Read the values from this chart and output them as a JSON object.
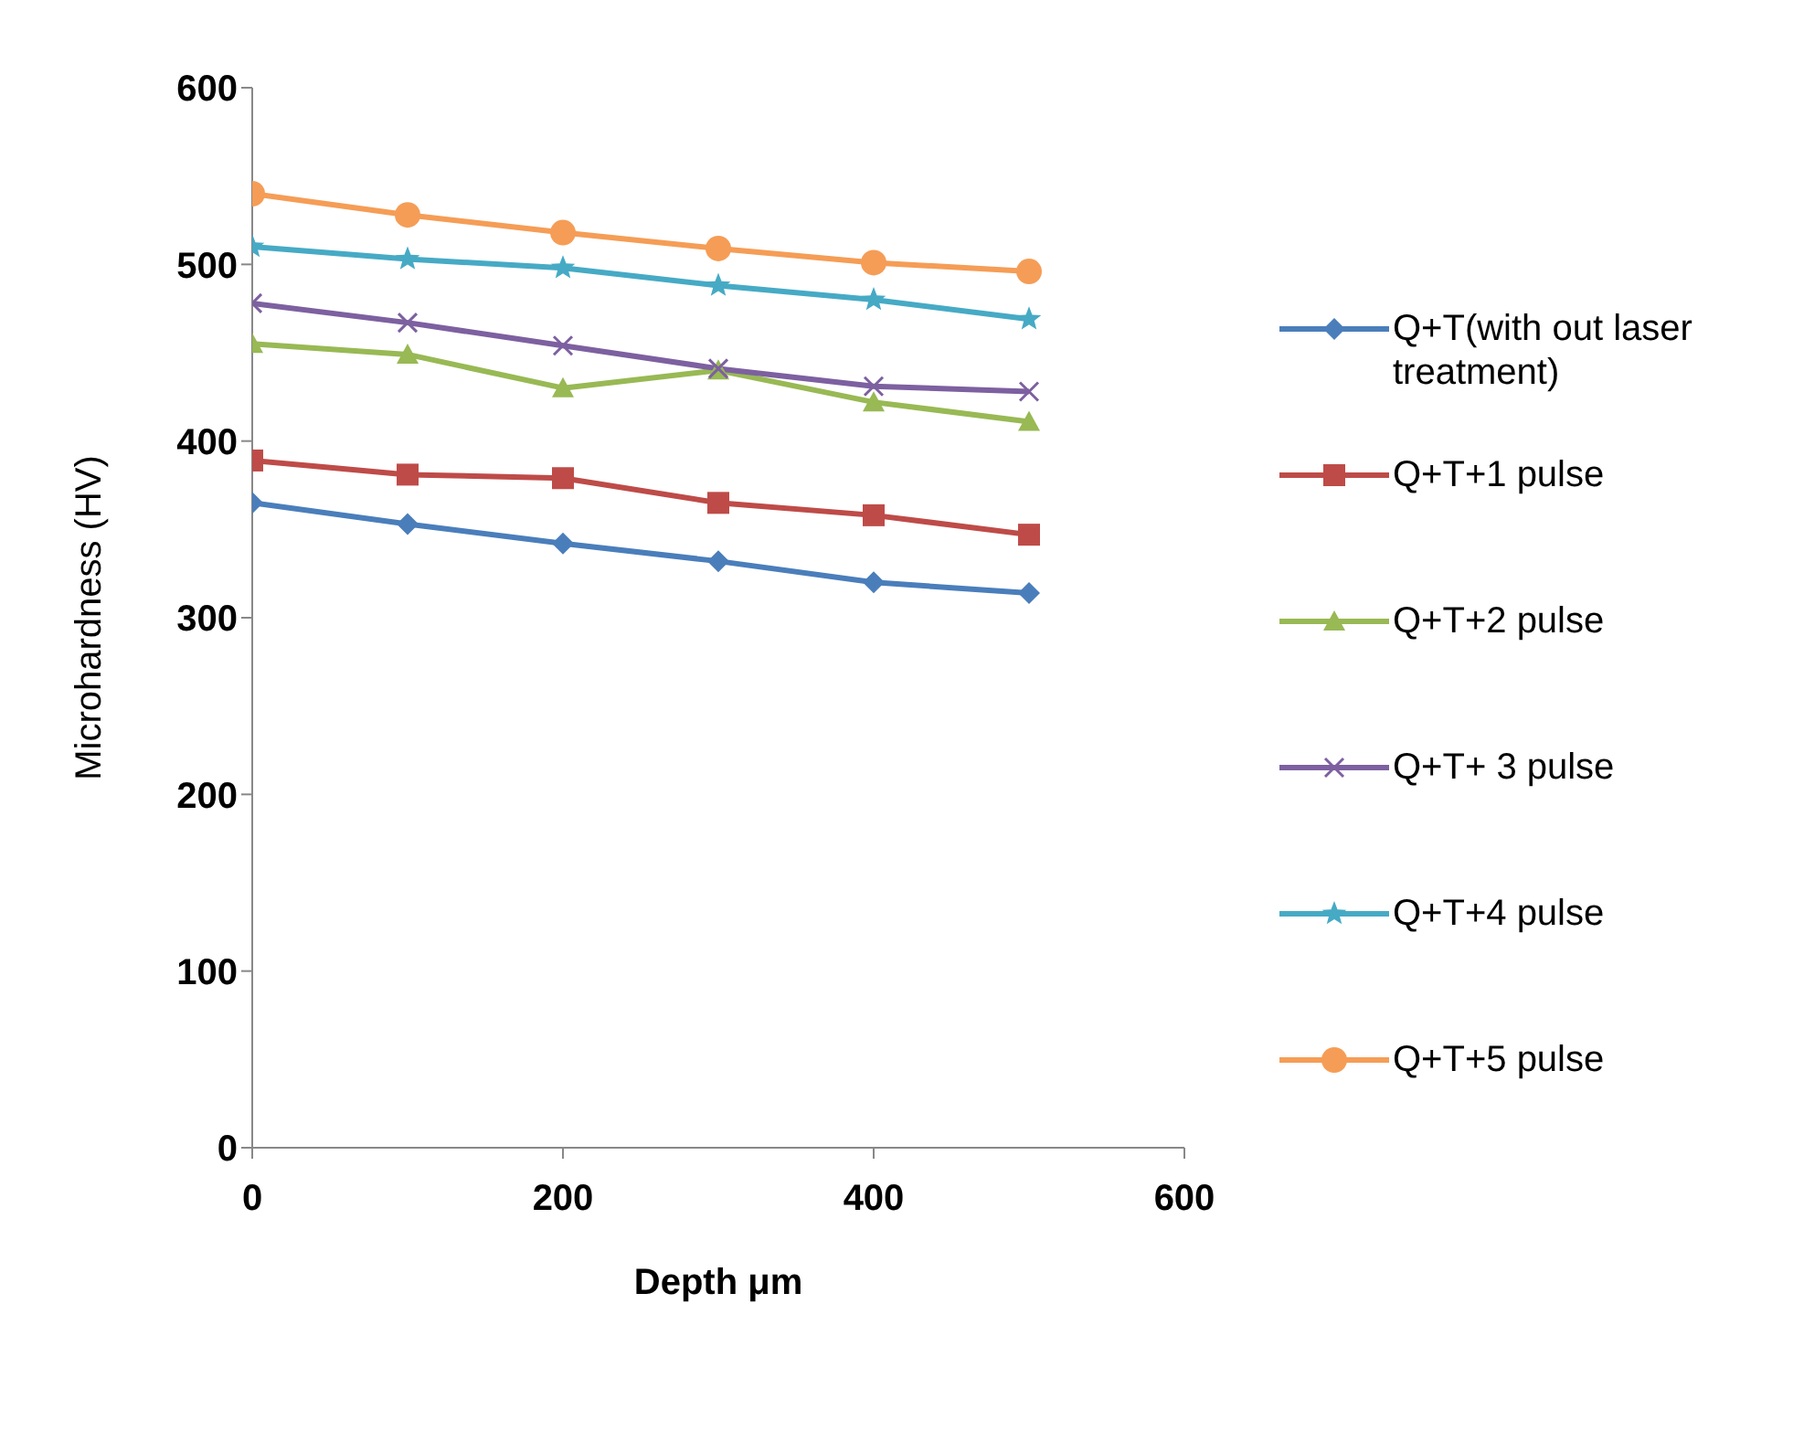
{
  "chart_data": {
    "type": "line",
    "xlabel": "Depth μm",
    "ylabel": "Microhardness (HV)",
    "x": [
      0,
      100,
      200,
      300,
      400,
      500
    ],
    "xlim": [
      0,
      600
    ],
    "xticks": [
      0,
      200,
      400,
      600
    ],
    "ylim": [
      0,
      600
    ],
    "yticks": [
      0,
      100,
      200,
      300,
      400,
      500,
      600
    ],
    "grid": false,
    "legend": "right",
    "line_style": "solid",
    "series": [
      {
        "name": "Q+T(with out laser treatment)",
        "color": "#4a7ebb",
        "marker": "diamond",
        "values": [
          365,
          353,
          342,
          332,
          320,
          314
        ]
      },
      {
        "name": "Q+T+1 pulse",
        "color": "#be4b48",
        "marker": "square",
        "values": [
          389,
          381,
          379,
          365,
          358,
          347
        ]
      },
      {
        "name": "Q+T+2 pulse",
        "color": "#98b954",
        "marker": "triangle",
        "values": [
          455,
          449,
          430,
          440,
          422,
          411
        ]
      },
      {
        "name": "Q+T+ 3 pulse",
        "color": "#7d60a0",
        "marker": "cross",
        "values": [
          478,
          467,
          454,
          441,
          431,
          428
        ]
      },
      {
        "name": "Q+T+4 pulse",
        "color": "#46aac5",
        "marker": "star",
        "values": [
          510,
          503,
          498,
          488,
          480,
          469
        ]
      },
      {
        "name": "Q+T+5 pulse",
        "color": "#f59d56",
        "marker": "circle",
        "values": [
          540,
          528,
          518,
          509,
          501,
          496
        ]
      }
    ]
  }
}
